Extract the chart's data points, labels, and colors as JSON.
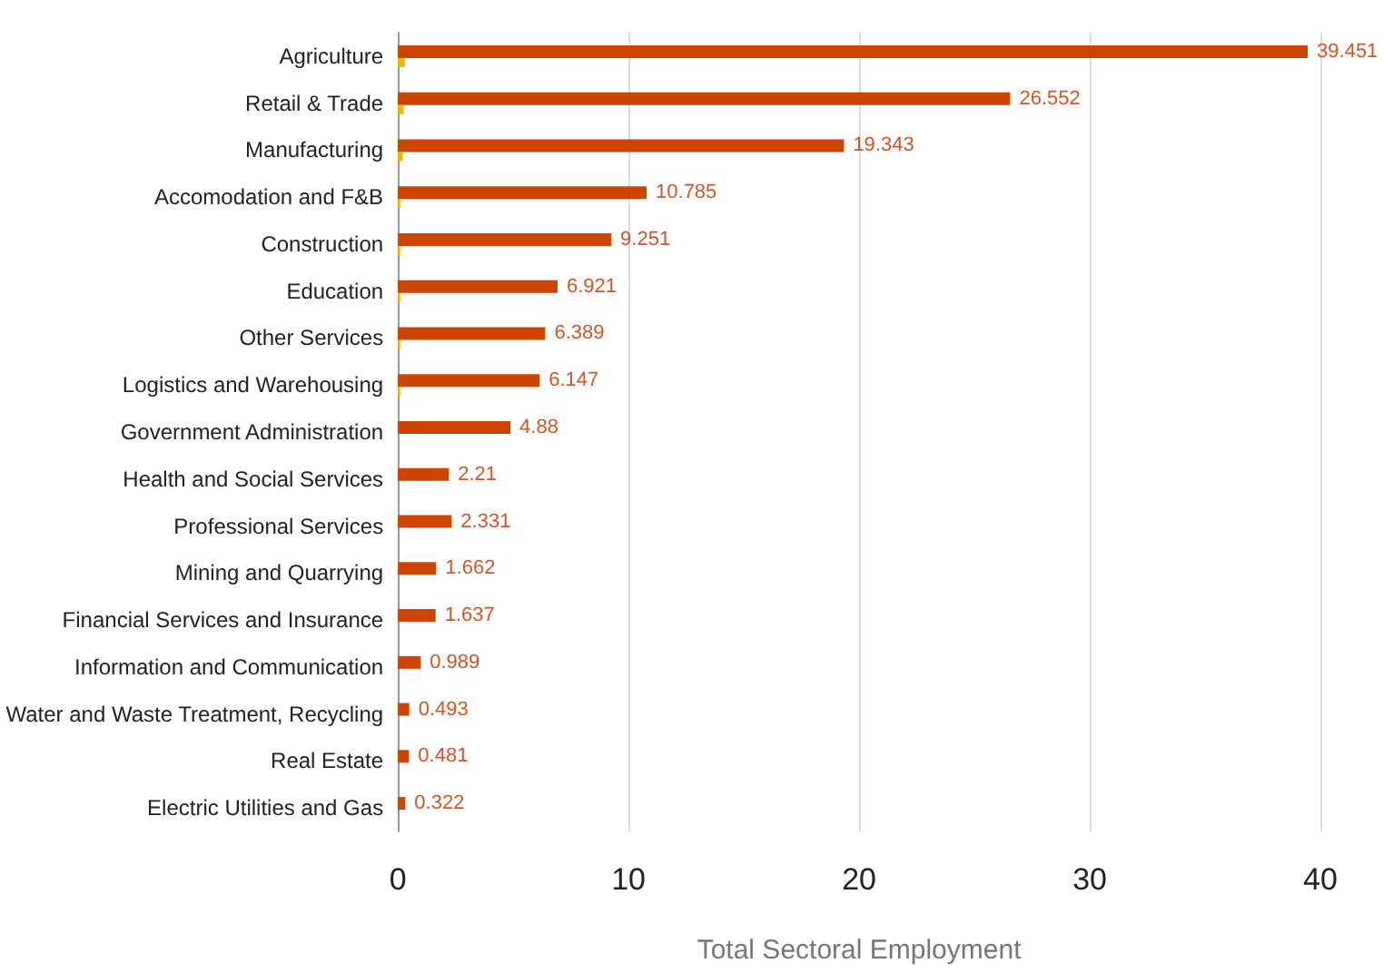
{
  "chart_data": {
    "type": "bar",
    "orientation": "horizontal",
    "xlabel": "Total Sectoral Employment",
    "categories": [
      "Agriculture",
      "Retail & Trade",
      "Manufacturing",
      "Accomodation and F&B",
      "Construction",
      "Education",
      "Other Services",
      "Logistics and Warehousing",
      "Government Administration",
      "Health and Social Services",
      "Professional Services",
      "Mining and Quarrying",
      "Financial Services and Insurance",
      "Information and Communication",
      "Water and Waste Treatment, Recycling",
      "Real Estate",
      "Electric Utilities and Gas"
    ],
    "series": [
      {
        "color": "#cc4400",
        "values": [
          39.451,
          26.552,
          19.343,
          10.785,
          9.251,
          6.921,
          6.389,
          6.147,
          4.88,
          2.21,
          2.331,
          1.662,
          1.637,
          0.989,
          0.493,
          0.481,
          0.322
        ],
        "value_labels": [
          "39.451",
          "26.552",
          "19.343",
          "10.785",
          "9.251",
          "6.921",
          "6.389",
          "6.147",
          "4.88",
          "2.21",
          "2.331",
          "1.662",
          "1.637",
          "0.989",
          "0.493",
          "0.481",
          "0.322"
        ]
      },
      {
        "color": "#f4b400",
        "values": [
          0.3,
          0.25,
          0.2,
          0.1,
          0.1,
          0.1,
          0.1,
          0.1,
          null,
          null,
          null,
          null,
          null,
          null,
          null,
          null,
          null
        ]
      }
    ],
    "xlim": [
      0,
      40
    ],
    "xticks": [
      0,
      10,
      20,
      30,
      40
    ],
    "grid": "x"
  }
}
